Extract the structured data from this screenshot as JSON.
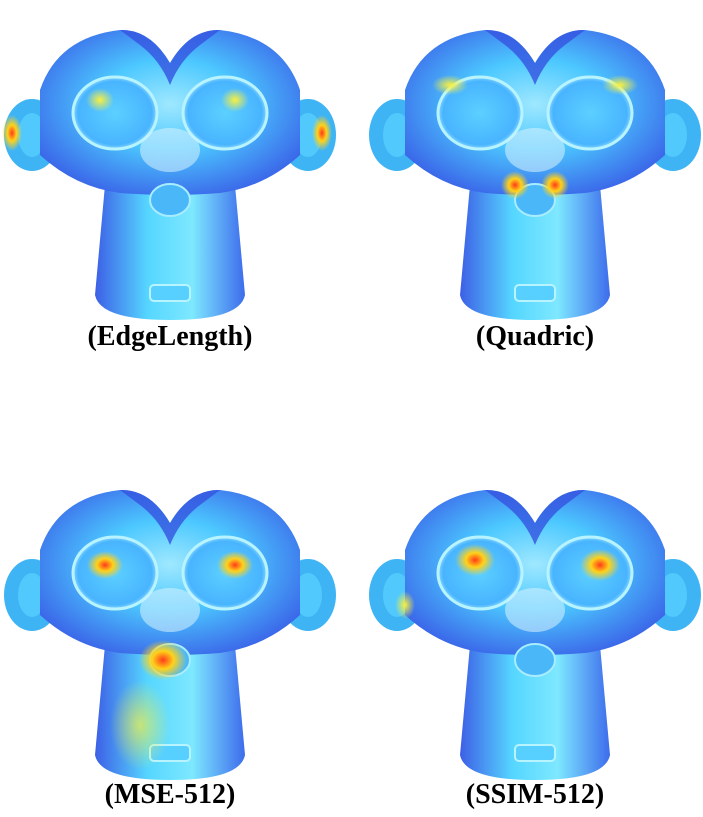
{
  "panels": [
    {
      "caption": "(EdgeLength)"
    },
    {
      "caption": "(Quadric)"
    },
    {
      "caption": "(MSE-512)"
    },
    {
      "caption": "(SSIM-512)"
    }
  ]
}
